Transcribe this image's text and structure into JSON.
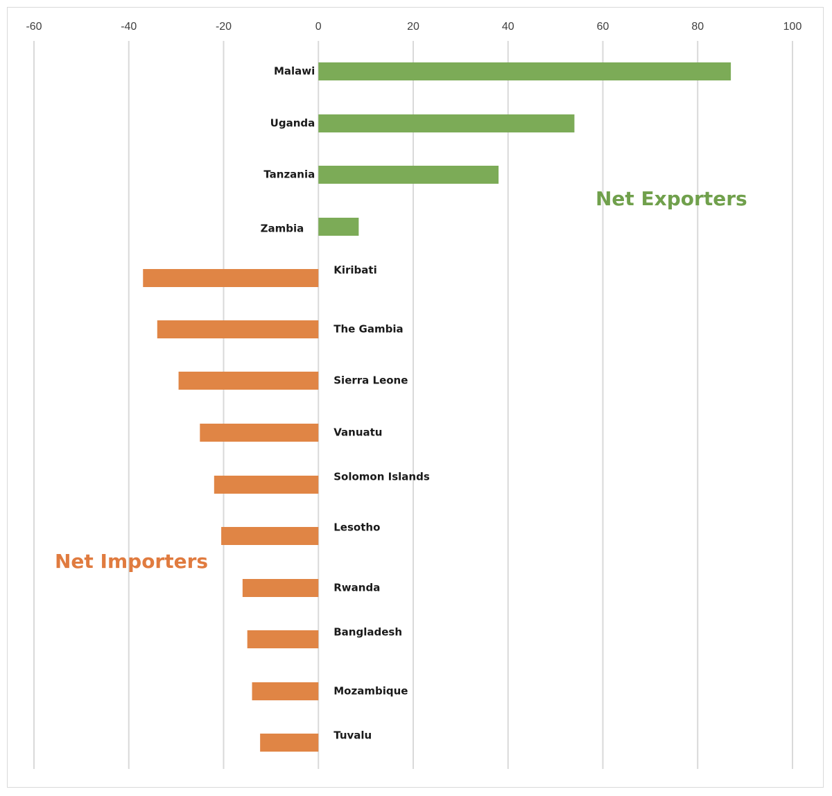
{
  "chart_data": {
    "type": "bar",
    "orientation": "horizontal",
    "title": "",
    "xlabel": "",
    "ylabel": "",
    "xlim": [
      -60,
      100
    ],
    "x_ticks": [
      "-60",
      "-40",
      "-20",
      "0",
      "20",
      "40",
      "60",
      "80",
      "100"
    ],
    "grid": true,
    "categories": [
      "Malawi",
      "Uganda",
      "Tanzania",
      "Zambia",
      "Kiribati",
      "The Gambia",
      "Sierra Leone",
      "Vanuatu",
      "Solomon Islands",
      "Lesotho",
      "Rwanda",
      "Bangladesh",
      "Mozambique",
      "Tuvalu"
    ],
    "values": [
      87,
      54,
      38,
      8.5,
      -37,
      -34,
      -29.5,
      -25,
      -22,
      -20.5,
      -16,
      -15,
      -14,
      -12.3
    ],
    "annotations": [
      {
        "text": "Net Exporters",
        "color": "#70a04c"
      },
      {
        "text": "Net Importers",
        "color": "#e07b3f"
      }
    ],
    "colors": {
      "positive": "#7cab57",
      "negative": "#e08545"
    }
  }
}
